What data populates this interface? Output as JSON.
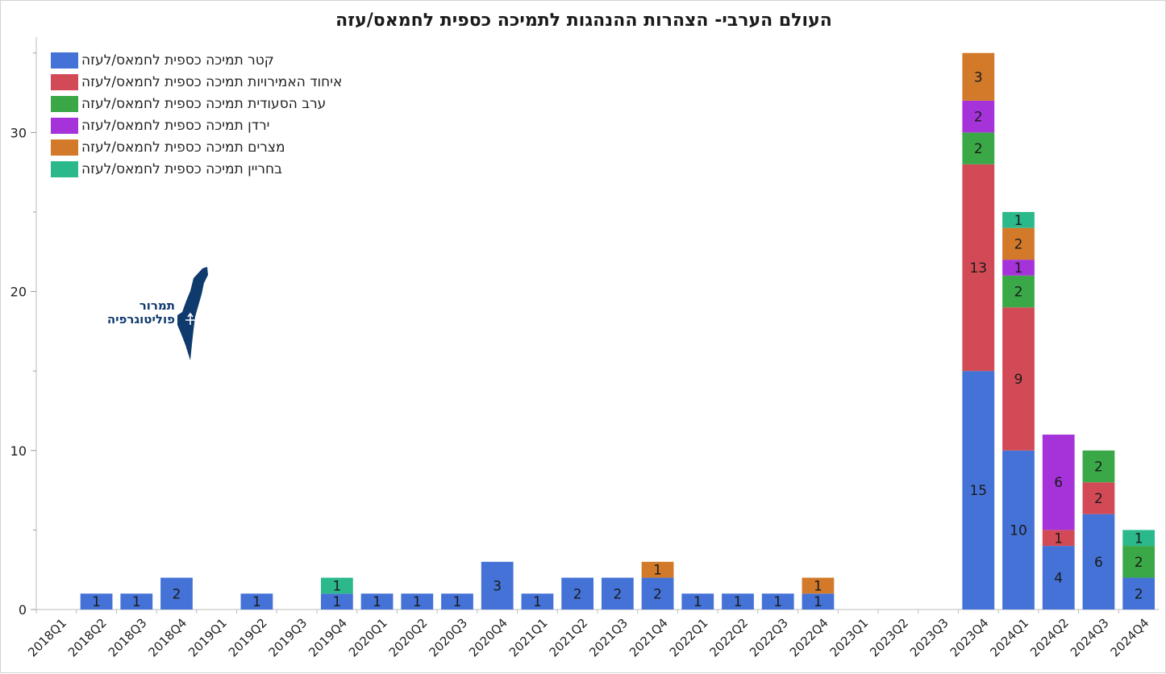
{
  "chart_data": {
    "type": "bar",
    "stacked": true,
    "title": "העולם הערבי- הצהרות ההנהגות לתמיכה כספית לחמאס/עזה",
    "categories": [
      "2018Q1",
      "2018Q2",
      "2018Q3",
      "2018Q4",
      "2019Q1",
      "2019Q2",
      "2019Q3",
      "2019Q4",
      "2020Q1",
      "2020Q2",
      "2020Q3",
      "2020Q4",
      "2021Q1",
      "2021Q2",
      "2021Q3",
      "2021Q4",
      "2022Q1",
      "2022Q2",
      "2022Q3",
      "2022Q4",
      "2023Q1",
      "2023Q2",
      "2023Q3",
      "2023Q4",
      "2024Q1",
      "2024Q2",
      "2024Q3",
      "2024Q4"
    ],
    "series": [
      {
        "name": "קטר תמיכה כספית לחמאס/לעזה",
        "color": "#4472d6",
        "values": [
          0,
          1,
          1,
          2,
          0,
          1,
          0,
          1,
          1,
          1,
          1,
          3,
          1,
          2,
          2,
          2,
          1,
          1,
          1,
          1,
          0,
          0,
          0,
          15,
          10,
          4,
          6,
          2
        ]
      },
      {
        "name": "איחוד האמירויות תמיכה כספית לחמאס/לעזה",
        "color": "#d24a55",
        "values": [
          0,
          0,
          0,
          0,
          0,
          0,
          0,
          0,
          0,
          0,
          0,
          0,
          0,
          0,
          0,
          0,
          0,
          0,
          0,
          0,
          0,
          0,
          0,
          13,
          9,
          1,
          2,
          0
        ]
      },
      {
        "name": "ערב הסעודית תמיכה כספית לחמאס/לעזה",
        "color": "#3aa847",
        "values": [
          0,
          0,
          0,
          0,
          0,
          0,
          0,
          0,
          0,
          0,
          0,
          0,
          0,
          0,
          0,
          0,
          0,
          0,
          0,
          0,
          0,
          0,
          0,
          2,
          2,
          0,
          2,
          2
        ]
      },
      {
        "name": "ירדן תמיכה כספית לחמאס/לעזה",
        "color": "#a633d9",
        "values": [
          0,
          0,
          0,
          0,
          0,
          0,
          0,
          0,
          0,
          0,
          0,
          0,
          0,
          0,
          0,
          0,
          0,
          0,
          0,
          0,
          0,
          0,
          0,
          2,
          1,
          6,
          0,
          0
        ]
      },
      {
        "name": "מצרים תמיכה כספית לחמאס/לעזה",
        "color": "#d27a2a",
        "values": [
          0,
          0,
          0,
          0,
          0,
          0,
          0,
          0,
          0,
          0,
          0,
          0,
          0,
          0,
          0,
          1,
          0,
          0,
          0,
          1,
          0,
          0,
          0,
          3,
          2,
          0,
          0,
          0
        ]
      },
      {
        "name": "בחריין תמיכה כספית לחמאס/לעזה",
        "color": "#2bb98b",
        "values": [
          0,
          0,
          0,
          0,
          0,
          0,
          0,
          1,
          0,
          0,
          0,
          0,
          0,
          0,
          0,
          0,
          0,
          0,
          0,
          0,
          0,
          0,
          0,
          0,
          1,
          0,
          0,
          1
        ]
      }
    ],
    "yticks": [
      0,
      10,
      20,
      30
    ],
    "ylim": [
      0,
      36
    ],
    "xlabel": "",
    "ylabel": "",
    "grid": false,
    "legend_position": "top-left",
    "data_labels": true
  },
  "logo": {
    "line1": "תמרור",
    "line2": "פוליטוגרפיה",
    "color": "#0f3a6e"
  }
}
